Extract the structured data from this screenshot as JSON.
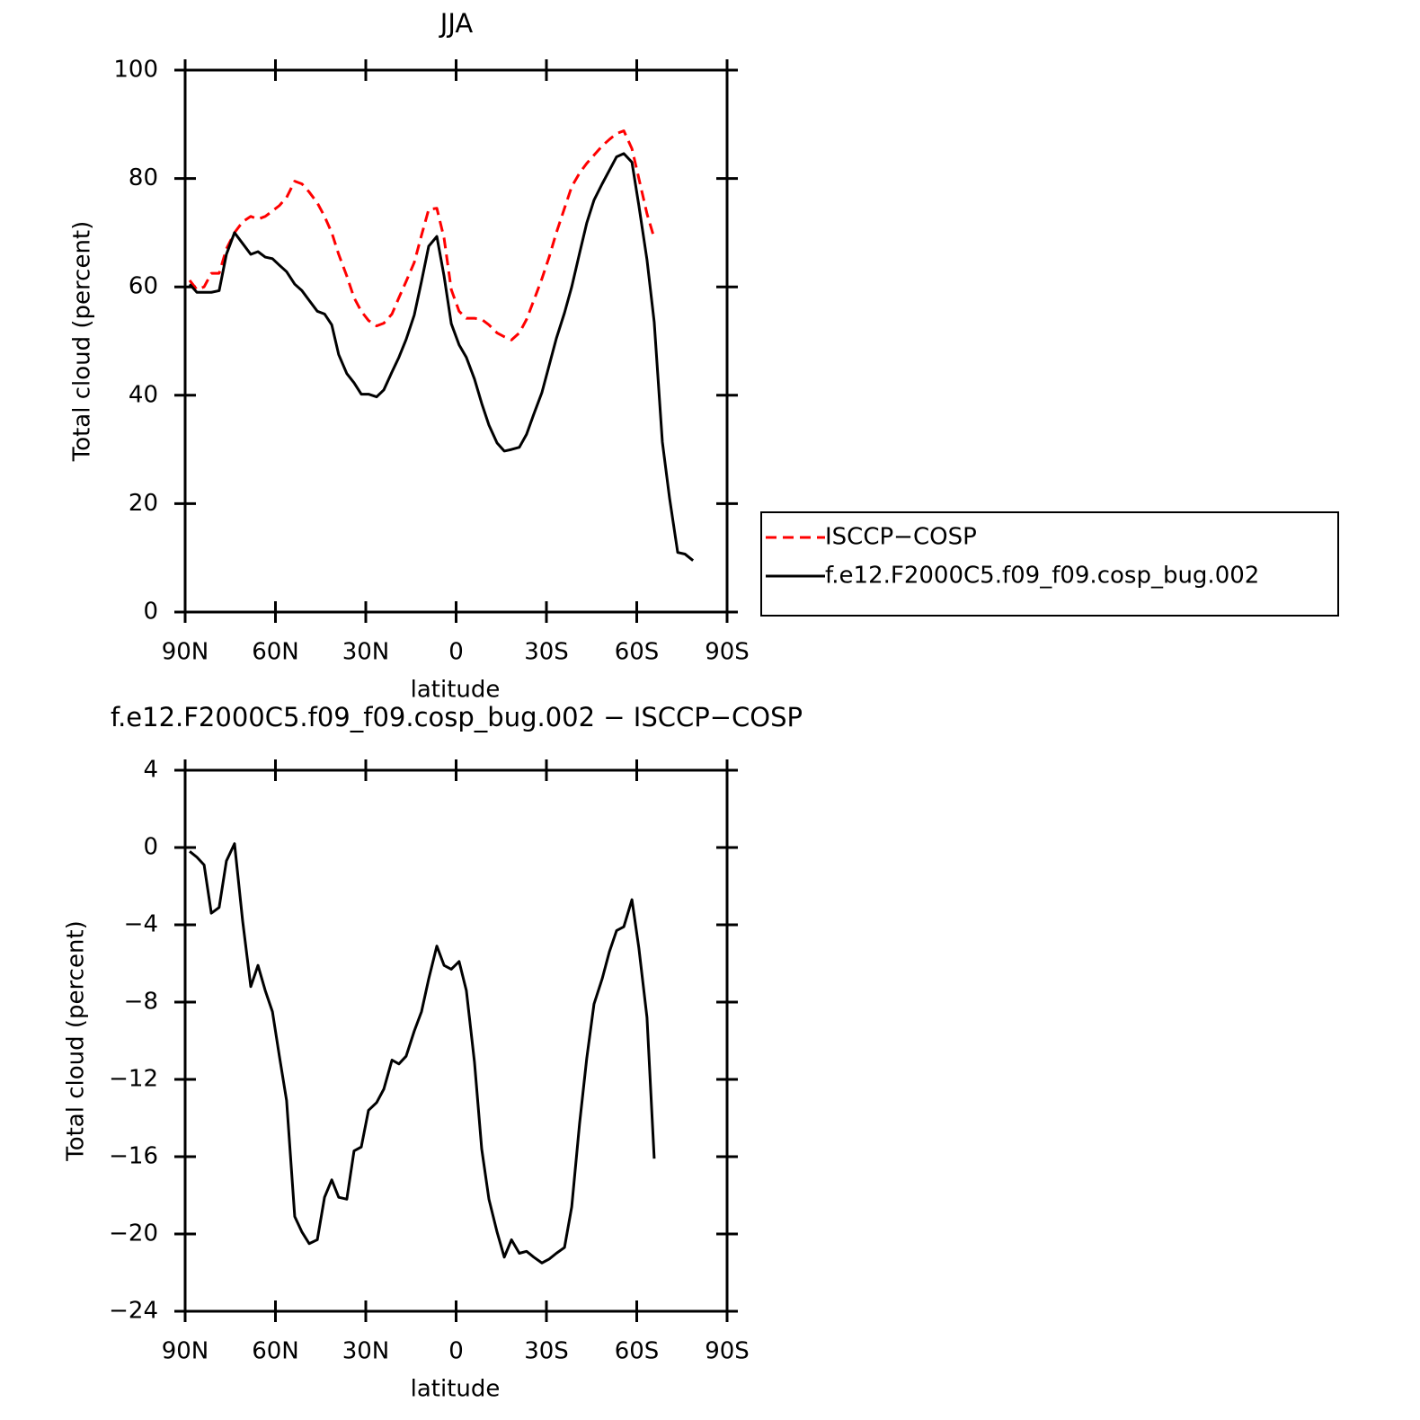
{
  "chart_data": [
    {
      "type": "line",
      "title": "JJA",
      "xlabel": "latitude",
      "ylabel": "Total cloud (percent)",
      "x": [
        88.5,
        86.1,
        83.7,
        81.3,
        78.7,
        76.3,
        73.6,
        70.9,
        68.2,
        65.8,
        63.4,
        61.0,
        58.7,
        56.3,
        53.6,
        51.2,
        48.8,
        46.1,
        43.7,
        41.3,
        39.0,
        36.3,
        33.9,
        31.5,
        29.1,
        26.4,
        24.0,
        21.3,
        19.0,
        16.6,
        13.9,
        11.5,
        9.1,
        6.4,
        4.0,
        1.6,
        -1.0,
        -3.4,
        -6.1,
        -8.5,
        -10.9,
        -13.6,
        -16.0,
        -18.4,
        -21.0,
        -23.4,
        -25.8,
        -28.5,
        -30.9,
        -33.3,
        -36.0,
        -38.4,
        -41.0,
        -43.4,
        -45.8,
        -48.5,
        -50.9,
        -53.3,
        -55.7,
        -58.4,
        -60.7,
        -63.4,
        -65.8,
        -68.5,
        -70.9,
        -73.6,
        -76.0,
        -78.7
      ],
      "series": [
        {
          "name": "ISCCP−COSP",
          "color": "#ff0000",
          "dashed": true,
          "values": [
            61.2,
            59.5,
            60,
            62.5,
            62.5,
            67,
            70,
            72,
            73,
            72.5,
            73,
            74,
            75,
            76.5,
            79.5,
            79,
            77.5,
            75.5,
            73,
            70,
            66,
            62,
            58,
            55.5,
            53.8,
            52.8,
            53.3,
            55,
            58,
            61,
            64.5,
            69.5,
            74.3,
            74.5,
            69,
            59.5,
            55.5,
            54.2,
            54.2,
            54,
            53,
            51.5,
            50.8,
            50.2,
            51.5,
            54,
            57.5,
            61.5,
            65.5,
            70,
            74.5,
            78.5,
            81,
            82.8,
            84.3,
            86,
            87.2,
            88.3,
            88.8,
            85.5,
            80,
            73.5,
            69,
            null,
            null,
            null,
            null,
            null
          ]
        },
        {
          "name": "f.e12.F2000C5.f09_f09.cosp_bug.002",
          "color": "#000000",
          "dashed": false,
          "values": [
            60.5,
            59,
            59,
            59,
            59.3,
            66,
            70,
            68,
            66,
            66.5,
            65.5,
            65.2,
            64,
            62.8,
            60.5,
            59.3,
            57.5,
            55.5,
            55,
            53,
            47.5,
            44,
            42.3,
            40.2,
            40.2,
            39.7,
            41,
            44.3,
            47,
            50.3,
            54.8,
            61,
            67.5,
            69.3,
            62,
            53.2,
            49.3,
            47,
            43,
            38.5,
            34.5,
            31.2,
            29.7,
            30,
            30.4,
            32.8,
            36.5,
            40.5,
            45.5,
            50.5,
            55.2,
            60,
            66.2,
            71.8,
            76,
            79,
            81.5,
            84,
            84.6,
            83,
            75,
            65,
            53.5,
            31.4,
            21,
            11,
            10.7,
            9.5
          ]
        }
      ],
      "xlim": [
        90,
        -90
      ],
      "xticks": [
        {
          "value": 90,
          "label": "90N"
        },
        {
          "value": 60,
          "label": "60N"
        },
        {
          "value": 30,
          "label": "30N"
        },
        0,
        {
          "value": -30,
          "label": "30S"
        },
        {
          "value": -60,
          "label": "60S"
        },
        {
          "value": -90,
          "label": "90S"
        }
      ],
      "ylim": [
        0,
        100
      ],
      "yticks": [
        0,
        20,
        40,
        60,
        80,
        100
      ],
      "legend": "right"
    },
    {
      "type": "line",
      "title": "f.e12.F2000C5.f09_f09.cosp_bug.002 − ISCCP−COSP",
      "xlabel": "latitude",
      "ylabel": "Total cloud (percent)",
      "x": [
        88.5,
        86.1,
        83.7,
        81.3,
        78.7,
        76.3,
        73.6,
        70.9,
        68.2,
        65.8,
        63.4,
        61.0,
        58.7,
        56.3,
        53.6,
        51.2,
        48.8,
        46.1,
        43.7,
        41.3,
        39.0,
        36.3,
        33.9,
        31.5,
        29.1,
        26.4,
        24.0,
        21.3,
        19.0,
        16.6,
        13.9,
        11.5,
        9.1,
        6.4,
        4.0,
        1.6,
        -1.0,
        -3.4,
        -6.1,
        -8.5,
        -10.9,
        -13.6,
        -16.0,
        -18.4,
        -21.0,
        -23.4,
        -25.8,
        -28.5,
        -30.9,
        -33.3,
        -36.0,
        -38.4,
        -41.0,
        -43.4,
        -45.8,
        -48.5,
        -50.9,
        -53.3,
        -55.7,
        -58.4,
        -60.7,
        -63.4,
        -65.8,
        -68.5,
        -70.9,
        -73.6,
        -76.0,
        -78.7
      ],
      "series": [
        {
          "color": "#000000",
          "dashed": false,
          "values": [
            -0.2,
            -0.5,
            -0.9,
            -3.4,
            -3.1,
            -0.7,
            0.2,
            -3.8,
            -7.2,
            -6.1,
            -7.4,
            -8.5,
            -10.8,
            -13.1,
            -19.1,
            -19.9,
            -20.5,
            -20.3,
            -18.1,
            -17.2,
            -18.1,
            -18.2,
            -15.7,
            -15.5,
            -13.6,
            -13.2,
            -12.5,
            -11,
            -11.2,
            -10.8,
            -9.5,
            -8.5,
            -6.8,
            -5.1,
            -6.1,
            -6.3,
            -5.9,
            -7.4,
            -11.1,
            -15.6,
            -18.2,
            -19.9,
            -21.2,
            -20.3,
            -21,
            -20.9,
            -21.2,
            -21.5,
            -21.3,
            -21,
            -20.7,
            -18.6,
            -14.3,
            -10.9,
            -8.1,
            -6.8,
            -5.4,
            -4.3,
            -4.1,
            -2.7,
            -5.2,
            -8.8,
            -16.1,
            null,
            null,
            null,
            null,
            null
          ]
        }
      ],
      "xlim": [
        90,
        -90
      ],
      "xticks": [
        {
          "value": 90,
          "label": "90N"
        },
        {
          "value": 60,
          "label": "60N"
        },
        {
          "value": 30,
          "label": "30N"
        },
        0,
        {
          "value": -30,
          "label": "30S"
        },
        {
          "value": -60,
          "label": "60S"
        },
        {
          "value": -90,
          "label": "90S"
        }
      ],
      "ylim": [
        -24,
        4
      ],
      "yticks": [
        {
          "value": -24,
          "label": "−24"
        },
        {
          "value": -20,
          "label": "−20"
        },
        {
          "value": -16,
          "label": "−16"
        },
        {
          "value": -12,
          "label": "−12"
        },
        {
          "value": -8,
          "label": "−8"
        },
        {
          "value": -4,
          "label": "−4"
        },
        0,
        4
      ]
    }
  ]
}
